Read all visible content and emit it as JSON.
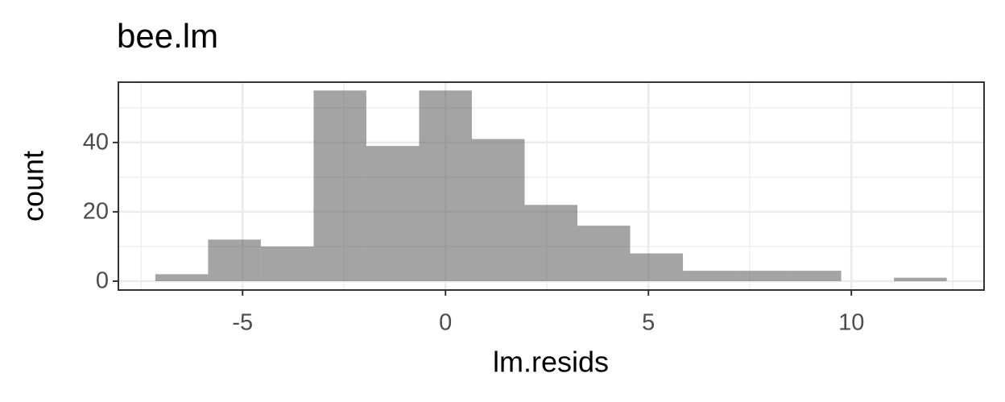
{
  "chart_data": {
    "type": "histogram",
    "title": "bee.lm",
    "x_label": "lm.resids",
    "y_label": "count",
    "bins": [
      -7.15,
      -5.85,
      -4.55,
      -3.25,
      -1.95,
      -0.65,
      0.65,
      1.95,
      3.25,
      4.55,
      5.85,
      7.15,
      8.45,
      9.75,
      11.05,
      12.35
    ],
    "values": [
      2,
      12,
      10,
      55,
      39,
      55,
      41,
      22,
      16,
      8,
      3,
      3,
      3,
      0,
      1
    ],
    "color": "#595959",
    "alpha": 0.55,
    "xlim": [
      -8.06,
      13.27
    ],
    "xticks": [
      -5,
      0,
      5,
      10
    ],
    "x_minor_ticks": [
      -7.5,
      -2.5,
      2.5,
      7.5,
      12.5
    ],
    "ylim": [
      -2.56,
      57.4
    ],
    "yticks": [
      0,
      20,
      40
    ],
    "y_minor_ticks": [
      10,
      30,
      50
    ],
    "grid": true
  }
}
